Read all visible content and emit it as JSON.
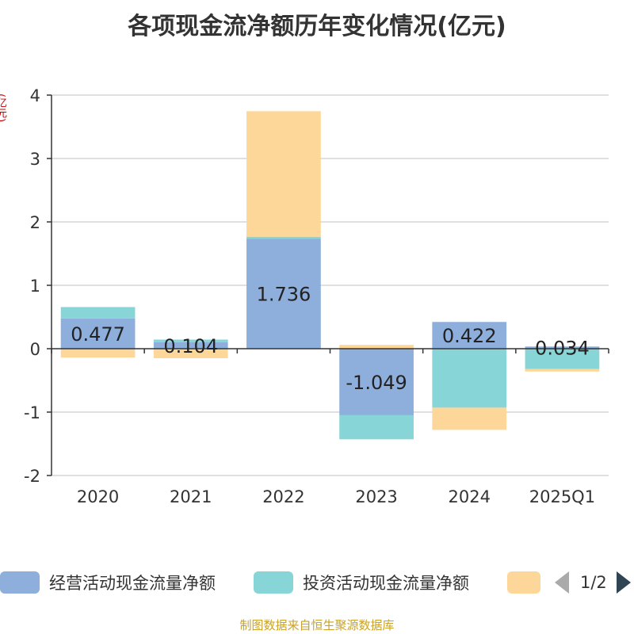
{
  "title": "各项现金流净额历年变化情况(亿元)",
  "unit_label": "(亿元)",
  "source": "制图数据来自恒生聚源数据库",
  "pager": {
    "text": "1/2"
  },
  "chart_data": {
    "type": "bar",
    "stacked": true,
    "categories": [
      "2020",
      "2021",
      "2022",
      "2023",
      "2024",
      "2025Q1"
    ],
    "ylim": [
      -2,
      4
    ],
    "yticks": [
      4,
      3,
      2,
      1,
      0,
      -1,
      -2
    ],
    "grid": true,
    "legend_position": "bottom",
    "series": [
      {
        "name": "经营活动现金流量净额",
        "color": "#8eaedb",
        "values": [
          0.477,
          0.104,
          1.736,
          -1.049,
          0.422,
          0.034
        ],
        "labels": [
          "0.477",
          "0.104",
          "1.736",
          "-1.049",
          "0.422",
          "0.034"
        ]
      },
      {
        "name": "投资活动现金流量净额",
        "color": "#88d5d7",
        "values": [
          0.18,
          0.04,
          0.03,
          -0.38,
          -0.93,
          -0.32
        ]
      },
      {
        "name": "",
        "color": "#fdd79a",
        "values": [
          -0.14,
          -0.15,
          1.98,
          0.06,
          -0.35,
          -0.04
        ]
      }
    ]
  }
}
